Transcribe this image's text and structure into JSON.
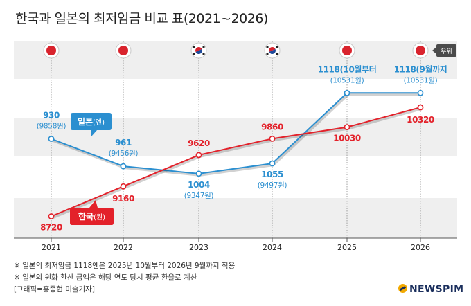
{
  "header": {
    "title": "한국과 일본의 최저임금 비교 표(2021~2026)"
  },
  "legend": {
    "rank_badge": "우위",
    "japan_bold": "일본",
    "japan_unit": "(엔)",
    "korea_bold": "한국",
    "korea_unit": "(원)"
  },
  "rank_row": [
    "japan-flag",
    "japan-flag",
    "korea-flag",
    "korea-flag",
    "japan-flag",
    "japan-flag"
  ],
  "chart_data": {
    "type": "line",
    "title": "한국과 일본의 최저임금 비교 표(2021~2026)",
    "categories": [
      "2021",
      "2022",
      "2023",
      "2024",
      "2025",
      "2026"
    ],
    "series": [
      {
        "name": "일본(엔)",
        "color": "#2b8fd0",
        "plot_values": [
          9858,
          9456,
          9347,
          9497,
          10531,
          10531
        ],
        "labels": [
          "930",
          "961",
          "1004",
          "1055",
          "1118(10월부터",
          "1118(9월까지"
        ],
        "sublabels": [
          "(9858원)",
          "(9456원)",
          "(9347원)",
          "(9497원)",
          "(10531원)",
          "(10531원)"
        ]
      },
      {
        "name": "한국(원)",
        "color": "#e3212a",
        "plot_values": [
          8720,
          9160,
          9620,
          9860,
          10030,
          10320
        ],
        "labels": [
          "8720",
          "9160",
          "9620",
          "9860",
          "10030",
          "10320"
        ]
      }
    ],
    "ylim": [
      8400,
      10900
    ]
  },
  "notes": {
    "note1": "※ 일본의 최저임금 1118엔은 2025년 10월부터 2026년 9월까지 적용",
    "note2": "※ 일본의 원화 환산 금액은 해당 연도 당시 평균 환율로 계산",
    "credit": "[그래픽=홍종현 미술기자]"
  },
  "brand": {
    "name": "NEWSPIM"
  }
}
